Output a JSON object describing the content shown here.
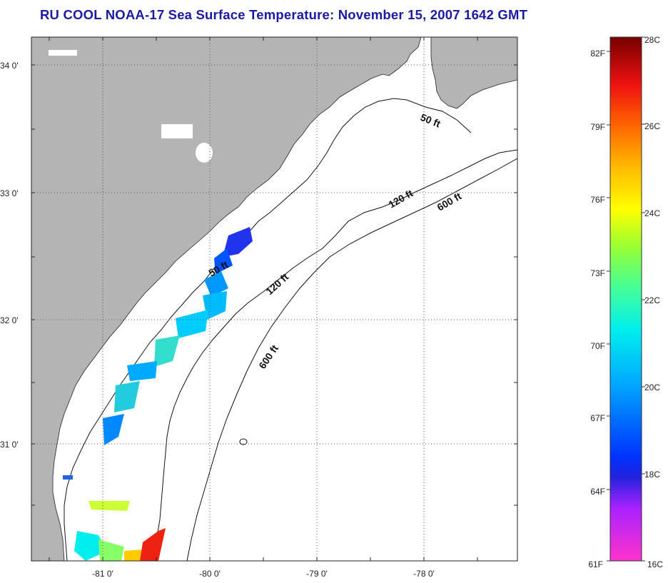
{
  "title": "RU COOL  NOAA-17  Sea Surface Temperature:  November 15, 2007 1642 GMT",
  "map": {
    "lat_ticks": [
      "34 0'",
      "33 0'",
      "32 0'",
      "31 0'"
    ],
    "lon_ticks": [
      "-81 0'",
      "-80 0'",
      "-79 0'",
      "-78 0'"
    ],
    "contour_labels": {
      "ft50_a": "50 ft",
      "ft50_b": "50 ft",
      "ft120_a": "120 ft",
      "ft120_b": "120 ft",
      "ft600_a": "600 ft",
      "ft600_b": "600 ft"
    },
    "colors": {
      "land": "#b4b4b4",
      "ocean": "#ffffff",
      "grid": "#555555"
    }
  },
  "colorbar": {
    "fahrenheit": [
      "82F",
      "79F",
      "76F",
      "73F",
      "70F",
      "67F",
      "64F",
      "61F"
    ],
    "celsius": [
      "28C",
      "26C",
      "24C",
      "22C",
      "20C",
      "18C",
      "16C"
    ],
    "range_c": [
      16,
      28
    ]
  }
}
